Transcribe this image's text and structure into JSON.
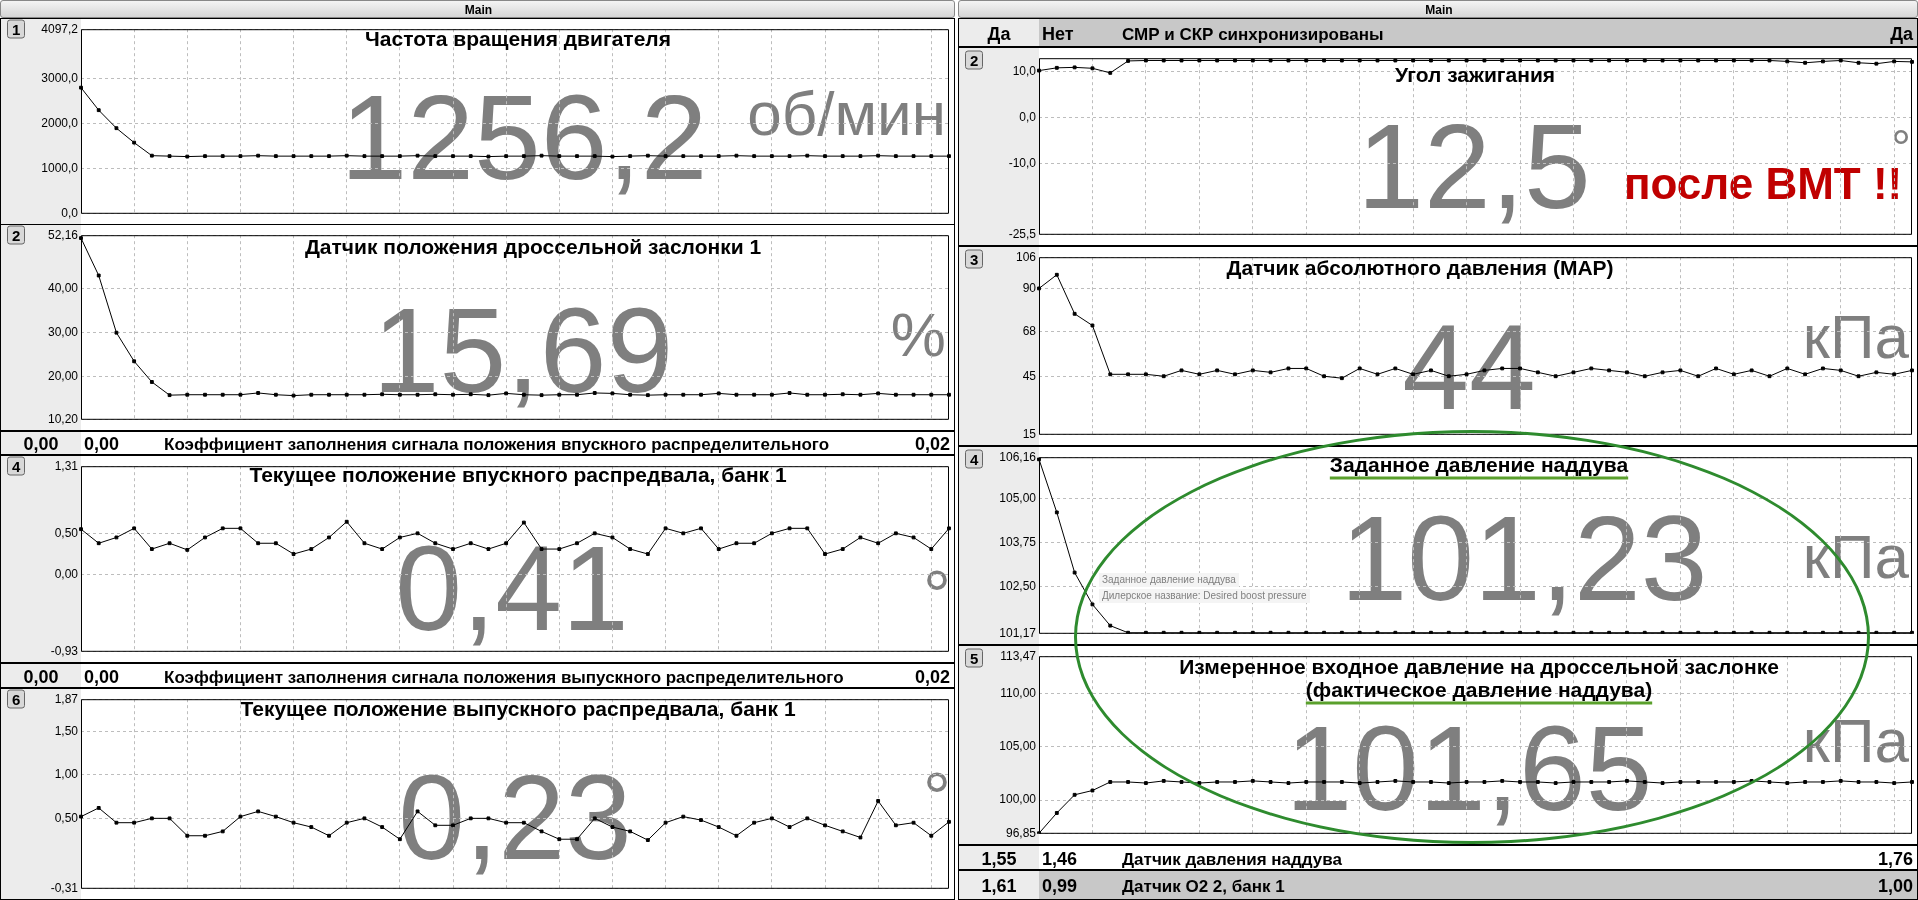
{
  "chart_data": [
    {
      "type": "other",
      "title": "Main"
    },
    {
      "type": "line",
      "title": "Частота вращения двигателя",
      "annotations": [
        "1",
        "1256,2",
        "об/мин"
      ],
      "categories": [
        null,
        null,
        null,
        null,
        null,
        null,
        null,
        null,
        null,
        null,
        null,
        null,
        null,
        null,
        null,
        null,
        null,
        null,
        null,
        null,
        null,
        null,
        null,
        null,
        null,
        null,
        null,
        null,
        null,
        null,
        null,
        null,
        null,
        null,
        null,
        null,
        null,
        null,
        null,
        null,
        null,
        null,
        null,
        null,
        null,
        null,
        null,
        null,
        null,
        null
      ],
      "series": [
        {
          "color": "#000000",
          "values": [
            2800,
            2300,
            1900,
            1580,
            1290,
            1280,
            1270,
            1280,
            1280,
            1280,
            1290,
            1280,
            1280,
            1280,
            1280,
            1290,
            1280,
            1280,
            1280,
            1290,
            1280,
            1280,
            1280,
            1270,
            1280,
            1280,
            1290,
            1280,
            1280,
            1280,
            1270,
            1280,
            1290,
            1280,
            1280,
            1280,
            1280,
            1290,
            1280,
            1280,
            1280,
            1290,
            1280,
            1280,
            1280,
            1290,
            1280,
            1280,
            1280,
            1280
          ]
        }
      ],
      "ylim": [
        0,
        4097.2
      ],
      "yticks": [
        {
          "value": 0,
          "label": "0,0"
        },
        {
          "value": 1000,
          "label": "1000,0"
        },
        {
          "value": 2000,
          "label": "2000,0"
        },
        {
          "value": 3000,
          "label": "3000,0"
        },
        {
          "value": 4097.2,
          "label": "4097,2"
        }
      ],
      "grid": true,
      "tick_labels": "y",
      "marker": "square"
    },
    {
      "type": "line",
      "title": "Датчик положения дроссельной заслонки 1",
      "annotations": [
        "2",
        "15,69",
        "%"
      ],
      "categories": [
        null,
        null,
        null,
        null,
        null,
        null,
        null,
        null,
        null,
        null,
        null,
        null,
        null,
        null,
        null,
        null,
        null,
        null,
        null,
        null,
        null,
        null,
        null,
        null,
        null,
        null,
        null,
        null,
        null,
        null,
        null,
        null,
        null,
        null,
        null,
        null,
        null,
        null,
        null,
        null,
        null,
        null,
        null,
        null,
        null,
        null,
        null,
        null,
        null,
        null
      ],
      "series": [
        {
          "color": "#000000",
          "values": [
            51.5,
            43,
            30,
            23.5,
            18.8,
            15.8,
            15.9,
            15.9,
            15.9,
            15.9,
            16.3,
            15.9,
            15.7,
            15.9,
            15.9,
            15.9,
            15.9,
            16,
            15.9,
            15.9,
            16,
            15.9,
            16,
            15.8,
            16.2,
            15.9,
            15.8,
            15.9,
            15.9,
            16.3,
            16.2,
            15.9,
            15.8,
            15.9,
            15.9,
            15.9,
            16.2,
            15.9,
            15.9,
            15.9,
            16.3,
            15.9,
            15.9,
            16,
            15.9,
            16.2,
            15.9,
            15.9,
            15.9,
            15.9
          ]
        }
      ],
      "ylim": [
        10.2,
        52.16
      ],
      "yticks": [
        {
          "value": 10.2,
          "label": "10,20"
        },
        {
          "value": 20,
          "label": "20,00"
        },
        {
          "value": 30,
          "label": "30,00"
        },
        {
          "value": 40,
          "label": "40,00"
        },
        {
          "value": 52.16,
          "label": "52,16"
        }
      ],
      "grid": true,
      "tick_labels": "y",
      "marker": "square"
    },
    {
      "type": "other",
      "annotations": [
        "0,00",
        "0,00",
        "Коэффициент заполнения сигнала положения впускного распределительного",
        "0,02"
      ]
    },
    {
      "type": "line",
      "title": "Текущее положение впускного распредвала, банк 1",
      "annotations": [
        "4",
        "0,41",
        "°"
      ],
      "categories": [
        null,
        null,
        null,
        null,
        null,
        null,
        null,
        null,
        null,
        null,
        null,
        null,
        null,
        null,
        null,
        null,
        null,
        null,
        null,
        null,
        null,
        null,
        null,
        null,
        null,
        null,
        null,
        null,
        null,
        null,
        null,
        null,
        null,
        null,
        null,
        null,
        null,
        null,
        null,
        null,
        null,
        null,
        null,
        null,
        null,
        null,
        null,
        null,
        null,
        null
      ],
      "series": [
        {
          "color": "#000000",
          "values": [
            0.55,
            0.38,
            0.45,
            0.56,
            0.31,
            0.38,
            0.3,
            0.45,
            0.56,
            0.56,
            0.38,
            0.38,
            0.25,
            0.31,
            0.45,
            0.64,
            0.38,
            0.31,
            0.45,
            0.5,
            0.38,
            0.31,
            0.38,
            0.31,
            0.38,
            0.63,
            0.31,
            0.31,
            0.38,
            0.5,
            0.45,
            0.31,
            0.25,
            0.56,
            0.5,
            0.56,
            0.31,
            0.38,
            0.38,
            0.5,
            0.56,
            0.56,
            0.25,
            0.31,
            0.45,
            0.38,
            0.5,
            0.45,
            0.31,
            0.56
          ]
        }
      ],
      "ylim": [
        -0.93,
        1.31
      ],
      "yticks": [
        {
          "value": -0.93,
          "label": "-0,93"
        },
        {
          "value": 0,
          "label": "0,00"
        },
        {
          "value": 0.5,
          "label": "0,50"
        },
        {
          "value": 1.31,
          "label": "1,31"
        }
      ],
      "grid": true,
      "tick_labels": "y",
      "marker": "square"
    },
    {
      "type": "other",
      "annotations": [
        "0,00",
        "0,00",
        "Коэффициент заполнения сигнала положения выпускного распределительного",
        "0,02"
      ]
    },
    {
      "type": "line",
      "title": "Текущее положение выпускного распредвала, банк 1",
      "annotations": [
        "6",
        "0,23",
        "°"
      ],
      "categories": [
        null,
        null,
        null,
        null,
        null,
        null,
        null,
        null,
        null,
        null,
        null,
        null,
        null,
        null,
        null,
        null,
        null,
        null,
        null,
        null,
        null,
        null,
        null,
        null,
        null,
        null,
        null,
        null,
        null,
        null,
        null,
        null,
        null,
        null,
        null,
        null,
        null,
        null,
        null,
        null,
        null,
        null,
        null,
        null,
        null,
        null,
        null,
        null,
        null,
        null
      ],
      "series": [
        {
          "color": "#000000",
          "values": [
            0.52,
            0.62,
            0.45,
            0.45,
            0.5,
            0.5,
            0.3,
            0.3,
            0.35,
            0.52,
            0.58,
            0.52,
            0.45,
            0.4,
            0.3,
            0.45,
            0.5,
            0.4,
            0.26,
            0.58,
            0.42,
            0.42,
            0.5,
            0.5,
            0.45,
            0.45,
            0.35,
            0.26,
            0.26,
            0.5,
            0.4,
            0.35,
            0.25,
            0.45,
            0.52,
            0.48,
            0.4,
            0.3,
            0.45,
            0.5,
            0.4,
            0.5,
            0.42,
            0.35,
            0.28,
            0.7,
            0.42,
            0.45,
            0.3,
            0.46
          ]
        }
      ],
      "ylim": [
        -0.31,
        1.87
      ],
      "yticks": [
        {
          "value": -0.31,
          "label": "-0,31"
        },
        {
          "value": 0.5,
          "label": "0,50"
        },
        {
          "value": 1,
          "label": "1,00"
        },
        {
          "value": 1.5,
          "label": "1,50"
        },
        {
          "value": 1.87,
          "label": "1,87"
        }
      ],
      "grid": true,
      "tick_labels": "y",
      "marker": "square"
    },
    {
      "type": "other",
      "title": "Main"
    },
    {
      "type": "other",
      "annotations": [
        "Да",
        "Нет",
        "СМР и СКР синхронизированы",
        "Да"
      ]
    },
    {
      "type": "line",
      "title": "Угол зажигания",
      "annotations": [
        "2",
        "12,5",
        "после ВМТ !!",
        "°"
      ],
      "categories": [
        null,
        null,
        null,
        null,
        null,
        null,
        null,
        null,
        null,
        null,
        null,
        null,
        null,
        null,
        null,
        null,
        null,
        null,
        null,
        null,
        null,
        null,
        null,
        null,
        null,
        null,
        null,
        null,
        null,
        null,
        null,
        null,
        null,
        null,
        null,
        null,
        null,
        null,
        null,
        null,
        null,
        null,
        null,
        null,
        null,
        null,
        null,
        null,
        null,
        null
      ],
      "series": [
        {
          "color": "#000000",
          "values": [
            10.3,
            10.9,
            11,
            10.8,
            9.8,
            12.4,
            12.5,
            12.5,
            12.5,
            12.5,
            12.5,
            12.5,
            12.5,
            12.5,
            12.5,
            12.5,
            12.5,
            12.5,
            12.5,
            12.5,
            12.5,
            12.5,
            12.5,
            12.5,
            12.5,
            12.5,
            12.5,
            12.5,
            12.5,
            12.5,
            12.5,
            12.5,
            12.5,
            12.5,
            12.5,
            12.5,
            12.5,
            12.5,
            12.5,
            12.5,
            12.5,
            12.5,
            12.3,
            12,
            12.3,
            12.5,
            12,
            11.8,
            12.3,
            12.2
          ]
        }
      ],
      "ylim": [
        -25.5,
        13
      ],
      "yticks": [
        {
          "value": -25.5,
          "label": "-25,5"
        },
        {
          "value": -10,
          "label": "-10,0"
        },
        {
          "value": 0,
          "label": "0,0"
        },
        {
          "value": 10,
          "label": "10,0"
        }
      ],
      "grid": true,
      "tick_labels": "y",
      "marker": "square"
    },
    {
      "type": "line",
      "title": "Датчик абсолютного давления (MAP)",
      "annotations": [
        "3",
        "44",
        "кПа"
      ],
      "categories": [
        null,
        null,
        null,
        null,
        null,
        null,
        null,
        null,
        null,
        null,
        null,
        null,
        null,
        null,
        null,
        null,
        null,
        null,
        null,
        null,
        null,
        null,
        null,
        null,
        null,
        null,
        null,
        null,
        null,
        null,
        null,
        null,
        null,
        null,
        null,
        null,
        null,
        null,
        null,
        null,
        null,
        null,
        null,
        null,
        null,
        null,
        null,
        null,
        null,
        null
      ],
      "series": [
        {
          "color": "#000000",
          "values": [
            90,
            97,
            77,
            71,
            46,
            46,
            46,
            45,
            48,
            46,
            48,
            46,
            48,
            47,
            49,
            49,
            45,
            44,
            49,
            46,
            49,
            46,
            48,
            45,
            46,
            48,
            49,
            49,
            47,
            45,
            47,
            49,
            48,
            47,
            45,
            47,
            48,
            45,
            49,
            46,
            48,
            45,
            49,
            46,
            49,
            48,
            45,
            47,
            46,
            48
          ]
        }
      ],
      "ylim": [
        15,
        106
      ],
      "yticks": [
        15,
        45,
        68,
        90,
        106
      ],
      "grid": true,
      "tick_labels": "y",
      "marker": "square"
    },
    {
      "type": "line",
      "title": "Заданное давление наддува",
      "annotations": [
        "4",
        "101,23",
        "кПа",
        "Заданное давление наддува",
        "Дилерское название: Desired boost pressure"
      ],
      "categories": [
        null,
        null,
        null,
        null,
        null,
        null,
        null,
        null,
        null,
        null,
        null,
        null,
        null,
        null,
        null,
        null,
        null,
        null,
        null,
        null,
        null,
        null,
        null,
        null,
        null,
        null,
        null,
        null,
        null,
        null,
        null,
        null,
        null,
        null,
        null,
        null,
        null,
        null,
        null,
        null,
        null,
        null,
        null,
        null,
        null,
        null,
        null,
        null,
        null,
        null
      ],
      "series": [
        {
          "color": "#000000",
          "values": [
            106.1,
            104.6,
            102.9,
            102,
            101.4,
            101.2,
            101.2,
            101.2,
            101.2,
            101.2,
            101.2,
            101.2,
            101.2,
            101.2,
            101.2,
            101.2,
            101.2,
            101.2,
            101.2,
            101.2,
            101.2,
            101.2,
            101.2,
            101.2,
            101.2,
            101.2,
            101.2,
            101.2,
            101.2,
            101.2,
            101.2,
            101.2,
            101.2,
            101.2,
            101.2,
            101.2,
            101.2,
            101.2,
            101.2,
            101.2,
            101.2,
            101.2,
            101.2,
            101.2,
            101.2,
            101.2,
            101.2,
            101.2,
            101.2,
            101.2
          ]
        }
      ],
      "ylim": [
        101.17,
        106.16
      ],
      "yticks": [
        {
          "value": 101.17,
          "label": "101,17"
        },
        {
          "value": 102.5,
          "label": "102,50"
        },
        {
          "value": 103.75,
          "label": "103,75"
        },
        {
          "value": 105,
          "label": "105,00"
        },
        {
          "value": 106.16,
          "label": "106,16"
        }
      ],
      "grid": true,
      "tick_labels": "y",
      "marker": "square"
    },
    {
      "type": "line",
      "title": "Измеренное входное давление на дроссельной заслонке",
      "subtitle": "(фактическое давление наддува)",
      "annotations": [
        "5",
        "101,65",
        "кПа"
      ],
      "categories": [
        null,
        null,
        null,
        null,
        null,
        null,
        null,
        null,
        null,
        null,
        null,
        null,
        null,
        null,
        null,
        null,
        null,
        null,
        null,
        null,
        null,
        null,
        null,
        null,
        null,
        null,
        null,
        null,
        null,
        null,
        null,
        null,
        null,
        null,
        null,
        null,
        null,
        null,
        null,
        null,
        null,
        null,
        null,
        null,
        null,
        null,
        null,
        null,
        null,
        null
      ],
      "series": [
        {
          "color": "#000000",
          "values": [
            96.9,
            98.8,
            100.5,
            100.9,
            101.7,
            101.7,
            101.6,
            101.8,
            101.7,
            101.6,
            101.7,
            101.7,
            101.8,
            101.7,
            101.6,
            101.7,
            101.7,
            101.7,
            101.6,
            101.7,
            101.8,
            101.7,
            101.7,
            101.6,
            101.7,
            101.7,
            101.8,
            101.7,
            101.7,
            101.6,
            101.7,
            101.7,
            101.7,
            101.8,
            101.7,
            101.6,
            101.7,
            101.7,
            101.7,
            101.7,
            101.8,
            101.7,
            101.6,
            101.7,
            101.7,
            101.8,
            101.7,
            101.7,
            101.6,
            101.7
          ]
        }
      ],
      "ylim": [
        96.85,
        113.47
      ],
      "yticks": [
        {
          "value": 96.85,
          "label": "96,85"
        },
        {
          "value": 100,
          "label": "100,00"
        },
        {
          "value": 105,
          "label": "105,00"
        },
        {
          "value": 110,
          "label": "110,00"
        },
        {
          "value": 113.47,
          "label": "113,47"
        }
      ],
      "grid": true,
      "tick_labels": "y",
      "marker": "square"
    },
    {
      "type": "other",
      "annotations": [
        "1,55",
        "1,46",
        "Датчик давления наддува",
        "1,76"
      ]
    },
    {
      "type": "other",
      "annotations": [
        "1,61",
        "0,99",
        "Датчик O2 2, банк 1",
        "1,00"
      ]
    }
  ]
}
